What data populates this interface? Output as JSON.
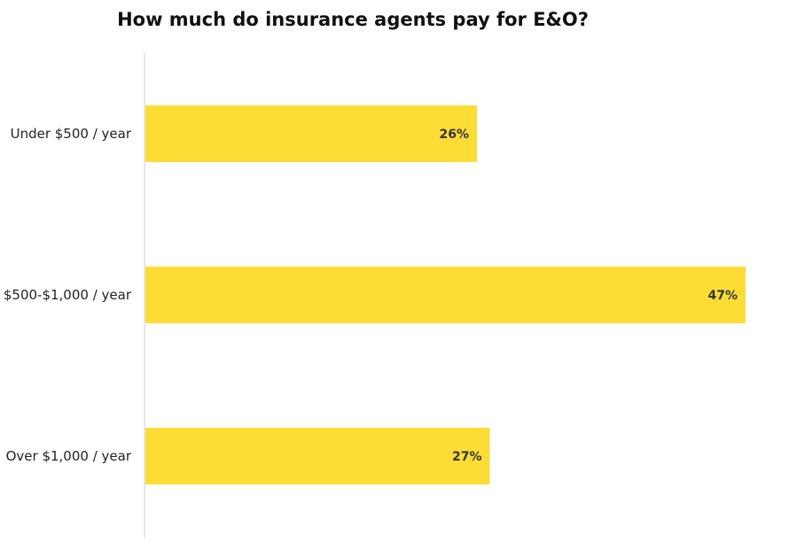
{
  "chart_data": {
    "type": "bar",
    "orientation": "horizontal",
    "title": "How much do insurance agents pay for E&O?",
    "categories": [
      "Under $500 / year",
      "$500-$1,000 / year",
      "Over $1,000 / year"
    ],
    "values": [
      26,
      47,
      27
    ],
    "value_labels": [
      "26%",
      "47%",
      "27%"
    ],
    "xlim": [
      0,
      47
    ],
    "bar_color": "#FDDD35",
    "axis_color": "#CCCCCC",
    "grid": false,
    "legend": "none"
  }
}
